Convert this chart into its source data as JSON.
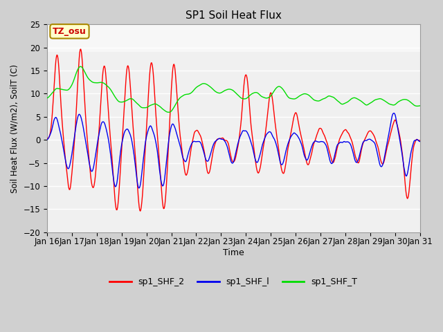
{
  "title": "SP1 Soil Heat Flux",
  "xlabel": "Time",
  "ylabel": "Soil Heat Flux (W/m2), SoilT (C)",
  "ylim": [
    -20,
    25
  ],
  "x_tick_labels": [
    "Jan 16",
    "Jan 17",
    "Jan 18",
    "Jan 19",
    "Jan 20",
    "Jan 21",
    "Jan 22",
    "Jan 23",
    "Jan 24",
    "Jan 25",
    "Jan 26",
    "Jan 27",
    "Jan 28",
    "Jan 29",
    "Jan 30",
    "Jan 31"
  ],
  "annotation_text": "TZ_osu",
  "annotation_bg": "#ffffcc",
  "annotation_border": "#aa8800",
  "bg_color": "#d8d8d8",
  "plot_bg": "#d8d8d8",
  "line_colors": {
    "sp1_SHF_2": "#ff0000",
    "sp1_SHF_l": "#0000ee",
    "sp1_SHF_T": "#00dd00"
  },
  "legend_labels": [
    "sp1_SHF_2",
    "sp1_SHF_l",
    "sp1_SHF_T"
  ],
  "figsize": [
    6.4,
    4.8
  ],
  "dpi": 100
}
